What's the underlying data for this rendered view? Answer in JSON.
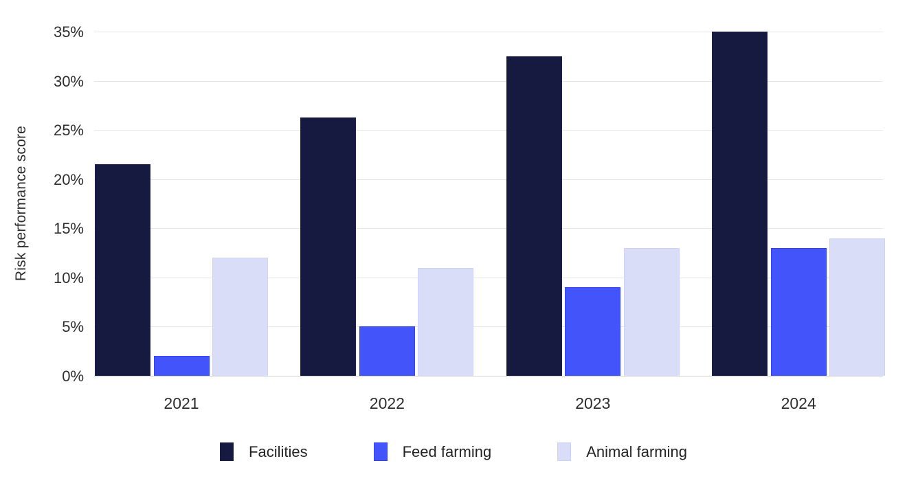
{
  "chart_data": {
    "type": "bar",
    "title": "",
    "xlabel": "",
    "ylabel": "Risk performance score",
    "categories": [
      "2021",
      "2022",
      "2023",
      "2024"
    ],
    "series": [
      {
        "name": "Facilities",
        "color": "#171a40",
        "border": "#1d214a",
        "values": [
          21.5,
          26.3,
          32.5,
          35
        ]
      },
      {
        "name": "Feed farming",
        "color": "#4355fa",
        "border": "#3342f4",
        "values": [
          2,
          5,
          9,
          13
        ]
      },
      {
        "name": "Animal farming",
        "color": "#d9ddf8",
        "border": "#cdd2f6",
        "values": [
          12,
          11,
          13,
          14
        ]
      }
    ],
    "ylim": [
      0,
      35
    ],
    "ytick_step": 5,
    "ytick_suffix": "%",
    "grid": true,
    "legend_position": "bottom",
    "colors": {
      "gridline": "#e6e6e6",
      "baseline": "#d4d4d4",
      "text": "#2e2e2e"
    }
  }
}
